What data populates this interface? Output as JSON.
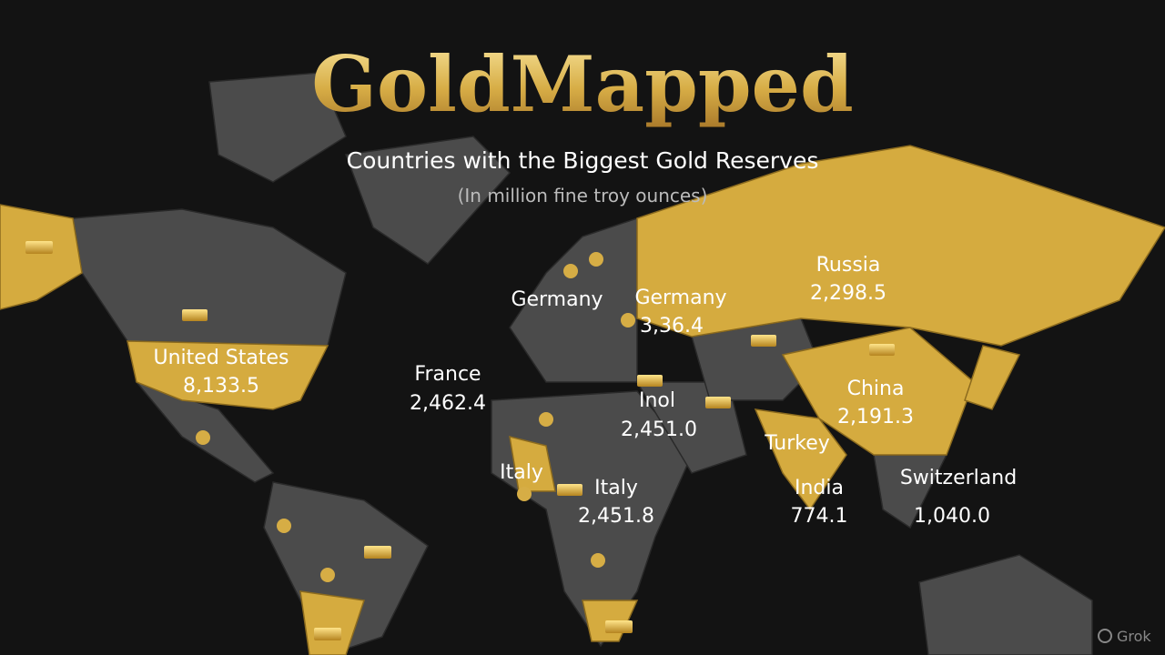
{
  "header": {
    "title": "GoldMapped",
    "subtitle": "Countries with the Biggest Gold Reserves",
    "unit": "(In million fine troy ounces)"
  },
  "labels": [
    {
      "name": "United States",
      "value": "8,133.5"
    },
    {
      "name": "France",
      "value": "2,462.4"
    },
    {
      "name": "Germany"
    },
    {
      "name": "Germany",
      "value": "3,36.4"
    },
    {
      "name": "Russia",
      "value": "2,298.5"
    },
    {
      "name": "Inol",
      "value": "2,451.0"
    },
    {
      "name": "China",
      "value": "2,191.3"
    },
    {
      "name": "Turkey"
    },
    {
      "name": "Italy"
    },
    {
      "name": "Italy",
      "value": "2,451.8"
    },
    {
      "name": "India",
      "value": "774.1"
    },
    {
      "name": "Switzerland",
      "value": "1,040.0"
    }
  ],
  "watermark": "Grok"
}
